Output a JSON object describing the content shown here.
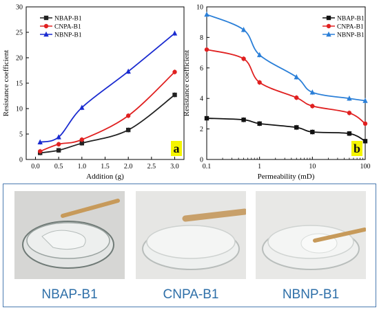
{
  "chart_data": [
    {
      "type": "line",
      "panel_label": "a",
      "xlabel": "Addition (g)",
      "ylabel": "Resistance coefficient",
      "xlim": [
        -0.2,
        3.2
      ],
      "ylim": [
        0,
        30
      ],
      "xticks": [
        "0.0",
        "0.5",
        "1.0",
        "1.5",
        "2.0",
        "2.5",
        "3.0"
      ],
      "yticks": [
        "0",
        "5",
        "10",
        "15",
        "20",
        "25",
        "30"
      ],
      "legend_position": "top-left",
      "grid": false,
      "x": [
        0.1,
        0.5,
        1.0,
        2.0,
        3.0
      ],
      "series": [
        {
          "name": "NBAP-B1",
          "color": "#222222",
          "marker": "square",
          "values": [
            1.3,
            1.8,
            3.2,
            5.8,
            12.7
          ]
        },
        {
          "name": "CNPA-B1",
          "color": "#e02020",
          "marker": "circle",
          "values": [
            1.6,
            3.0,
            3.9,
            8.6,
            17.2
          ]
        },
        {
          "name": "NBNP-B1",
          "color": "#1a2bd0",
          "marker": "triangle",
          "values": [
            3.4,
            4.4,
            10.2,
            17.3,
            24.8
          ]
        }
      ]
    },
    {
      "type": "line",
      "panel_label": "b",
      "xlabel": "Permeability (mD)",
      "ylabel": "Resistance coefficient",
      "xscale": "log",
      "xlim": [
        0.1,
        100
      ],
      "ylim": [
        0,
        10
      ],
      "xticks": [
        "0.1",
        "1",
        "10",
        "100"
      ],
      "yticks": [
        "0",
        "2",
        "4",
        "6",
        "8",
        "10"
      ],
      "legend_position": "top-right",
      "grid": false,
      "x": [
        0.1,
        0.5,
        1,
        5,
        10,
        50,
        100
      ],
      "series": [
        {
          "name": "NBAP-B1",
          "color": "#111111",
          "marker": "square",
          "values": [
            2.7,
            2.6,
            2.35,
            2.1,
            1.8,
            1.7,
            1.2
          ]
        },
        {
          "name": "CNPA-B1",
          "color": "#e02020",
          "marker": "circle",
          "values": [
            7.2,
            6.6,
            5.05,
            4.05,
            3.5,
            3.05,
            2.35
          ]
        },
        {
          "name": "NBNP-B1",
          "color": "#2a7fd8",
          "marker": "triangle",
          "values": [
            9.5,
            8.5,
            6.85,
            5.4,
            4.4,
            4.0,
            3.85
          ]
        }
      ]
    }
  ],
  "photos": [
    {
      "caption": "NBAP-B1"
    },
    {
      "caption": "CNPA-B1"
    },
    {
      "caption": "NBNP-B1"
    }
  ]
}
